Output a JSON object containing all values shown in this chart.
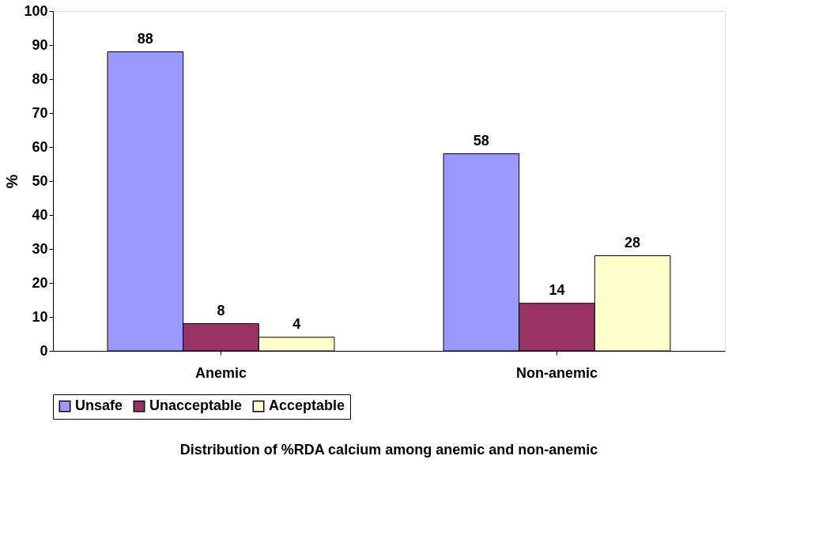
{
  "chart_data": {
    "type": "bar",
    "title": "Distribution of %RDA calcium among anemic and non-anemic",
    "ylabel": "%",
    "categories": [
      "Anemic",
      "Non-anemic"
    ],
    "series": [
      {
        "name": "Unsafe",
        "color": "#9999ff",
        "values": [
          88,
          58
        ]
      },
      {
        "name": "Unacceptable",
        "color": "#993366",
        "values": [
          8,
          14
        ]
      },
      {
        "name": "Acceptable",
        "color": "#ffffcc",
        "values": [
          4,
          28
        ]
      }
    ],
    "ylim": [
      0,
      100
    ],
    "yticks": [
      0,
      10,
      20,
      30,
      40,
      50,
      60,
      70,
      80,
      90,
      100
    ],
    "grid": false,
    "legend": "bottom",
    "data_labels": true
  }
}
